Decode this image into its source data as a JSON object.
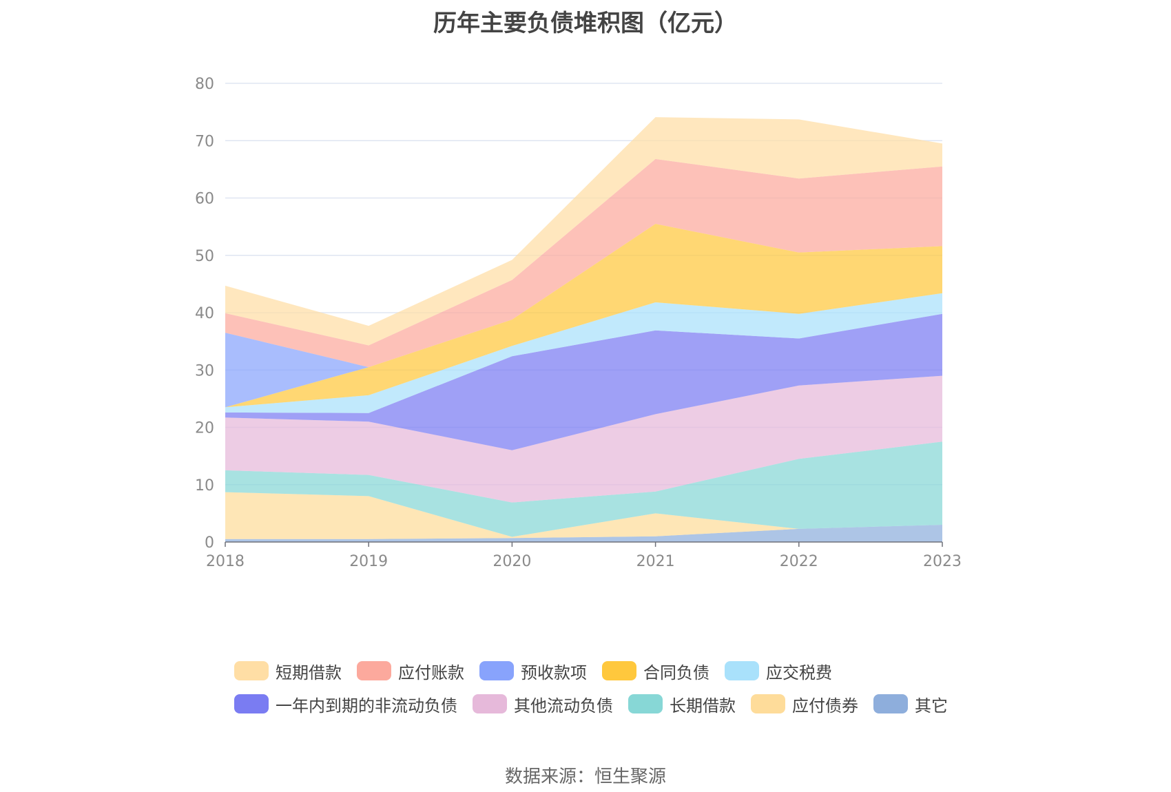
{
  "chart_data": {
    "type": "area",
    "stacked": true,
    "title": "历年主要负债堆积图（亿元）",
    "x": [
      "2018",
      "2019",
      "2020",
      "2021",
      "2022",
      "2023"
    ],
    "ylim": [
      0,
      80
    ],
    "yticks": [
      0,
      10,
      20,
      30,
      40,
      50,
      60,
      70,
      80
    ],
    "grid": true,
    "legend_position": "bottom",
    "series": [
      {
        "name": "其它",
        "color": "#8eaedc",
        "values": [
          0.5,
          0.5,
          0.7,
          1.0,
          2.3,
          3.0
        ]
      },
      {
        "name": "应付债券",
        "color": "#fedc9a",
        "values": [
          8.2,
          7.5,
          0.2,
          4.0,
          0,
          0
        ]
      },
      {
        "name": "长期借款",
        "color": "#87d7d6",
        "values": [
          3.8,
          3.7,
          6.0,
          3.8,
          12.2,
          14.5
        ]
      },
      {
        "name": "其他流动负债",
        "color": "#e6b9da",
        "values": [
          9.2,
          9.3,
          9.1,
          13.5,
          12.8,
          11.5
        ]
      },
      {
        "name": "一年内到期的非流动负债",
        "color": "#7a7cf2",
        "values": [
          0.9,
          1.5,
          16.4,
          14.6,
          8.2,
          10.8
        ]
      },
      {
        "name": "应交税费",
        "color": "#a9e1fb",
        "values": [
          0.9,
          3.1,
          1.8,
          4.9,
          4.3,
          3.6
        ]
      },
      {
        "name": "合同负债",
        "color": "#ffc83d",
        "values": [
          0,
          4.9,
          4.6,
          13.7,
          10.7,
          8.2
        ]
      },
      {
        "name": "预收款项",
        "color": "#88a3fc",
        "values": [
          13.0,
          0,
          0,
          0,
          0,
          0
        ]
      },
      {
        "name": "应付账款",
        "color": "#fca99d",
        "values": [
          3.4,
          3.8,
          6.9,
          11.3,
          12.9,
          13.9
        ]
      },
      {
        "name": "短期借款",
        "color": "#ffdea5",
        "values": [
          4.8,
          3.4,
          3.5,
          7.3,
          10.3,
          4.0
        ]
      }
    ]
  },
  "legend": {
    "row1": [
      {
        "label": "短期借款",
        "color": "#ffdea5"
      },
      {
        "label": "应付账款",
        "color": "#fca99d"
      },
      {
        "label": "预收款项",
        "color": "#88a3fc"
      },
      {
        "label": "合同负债",
        "color": "#ffc83d"
      },
      {
        "label": "应交税费",
        "color": "#a9e1fb"
      }
    ],
    "row2": [
      {
        "label": "一年内到期的非流动负债",
        "color": "#7a7cf2"
      },
      {
        "label": "其他流动负债",
        "color": "#e6b9da"
      },
      {
        "label": "长期借款",
        "color": "#87d7d6"
      },
      {
        "label": "应付债券",
        "color": "#fedc9a"
      },
      {
        "label": "其它",
        "color": "#8eaedc"
      }
    ]
  },
  "source": "数据来源：恒生聚源"
}
